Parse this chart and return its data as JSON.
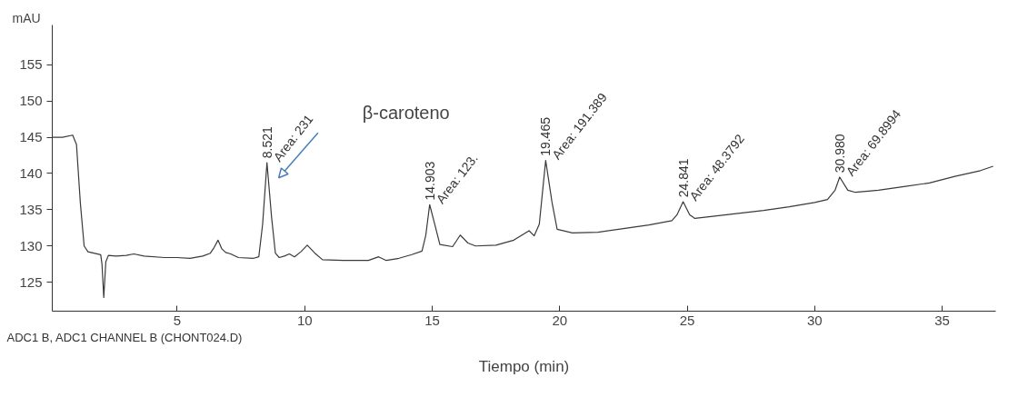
{
  "chart_data": {
    "type": "line",
    "xlabel": "Tiempo (min)",
    "ylabel": "mAU",
    "color": "#3a3a3a",
    "grid": false,
    "line_style": "solid",
    "marker": "none",
    "x": [
      0.1,
      0.5,
      0.9,
      1.05,
      1.2,
      1.35,
      1.5,
      2.0,
      2.05,
      2.12,
      2.2,
      2.3,
      2.6,
      3.0,
      3.3,
      3.7,
      4.5,
      5.0,
      5.5,
      6.0,
      6.3,
      6.45,
      6.6,
      6.75,
      6.9,
      7.1,
      7.4,
      8.0,
      8.2,
      8.35,
      8.52,
      8.7,
      8.85,
      9.0,
      9.2,
      9.4,
      9.6,
      9.85,
      10.1,
      10.4,
      10.7,
      11.5,
      12.5,
      12.9,
      13.2,
      13.7,
      14.2,
      14.6,
      14.75,
      14.9,
      15.1,
      15.3,
      15.8,
      16.1,
      16.4,
      16.7,
      17.5,
      18.2,
      18.8,
      19.0,
      19.2,
      19.45,
      19.7,
      19.9,
      20.5,
      21.5,
      22.5,
      23.5,
      24.4,
      24.6,
      24.84,
      25.1,
      25.3,
      26.0,
      27.0,
      28.0,
      29.0,
      30.0,
      30.5,
      30.8,
      30.98,
      31.3,
      31.6,
      32.5,
      33.5,
      34.5,
      35.5,
      36.5,
      37.0
    ],
    "values": [
      145.0,
      145.0,
      145.3,
      144,
      136,
      130,
      129.2,
      128.8,
      127.5,
      122.9,
      127.8,
      128.7,
      128.6,
      128.7,
      128.9,
      128.6,
      128.4,
      128.4,
      128.3,
      128.6,
      129.0,
      129.8,
      130.8,
      129.6,
      129.1,
      128.9,
      128.4,
      128.3,
      128.5,
      133,
      141.5,
      134,
      129,
      128.4,
      128.6,
      128.9,
      128.5,
      129.2,
      130.1,
      129.0,
      128.1,
      128.0,
      128.0,
      128.5,
      128.0,
      128.3,
      128.8,
      129.3,
      131.5,
      135.7,
      133,
      130.2,
      129.9,
      131.5,
      130.4,
      130.0,
      130.1,
      130.8,
      132.1,
      131.4,
      133,
      141.8,
      136,
      132.3,
      131.8,
      131.9,
      132.4,
      132.9,
      133.5,
      134.3,
      136.1,
      134.3,
      133.8,
      134.1,
      134.5,
      134.9,
      135.4,
      136.0,
      136.4,
      137.7,
      139.5,
      137.7,
      137.4,
      137.7,
      138.2,
      138.7,
      139.6,
      140.4,
      141.0
    ],
    "xlim": [
      0.1,
      37.1
    ],
    "ylim": [
      121,
      160.5
    ],
    "xticks": [
      5,
      10,
      15,
      20,
      25,
      30,
      35
    ],
    "yticks": [
      125,
      130,
      135,
      140,
      145,
      150,
      155
    ],
    "annotations": [
      "ADC1 B, ADC1 CHANNEL B (CHONT024.D)",
      {
        "text": "8.521",
        "x": 8.52,
        "y": 141.5
      },
      {
        "text": "Area: 231",
        "x": 8.52,
        "y": 141.5
      },
      "β-caroteno",
      {
        "text": "14.903",
        "x": 14.9,
        "y": 135.7
      },
      {
        "text": "Area: 123.",
        "x": 14.9,
        "y": 135.7
      },
      {
        "text": "19.465",
        "x": 19.45,
        "y": 141.8
      },
      {
        "text": "Area: 191.389",
        "x": 19.45,
        "y": 141.8
      },
      {
        "text": "24.841",
        "x": 24.84,
        "y": 136.1
      },
      {
        "text": "Area: 48.3792",
        "x": 24.84,
        "y": 136.1
      },
      {
        "text": "30.980",
        "x": 30.98,
        "y": 139.5
      },
      {
        "text": "Area: 69.8994",
        "x": 30.98,
        "y": 139.5
      }
    ]
  }
}
